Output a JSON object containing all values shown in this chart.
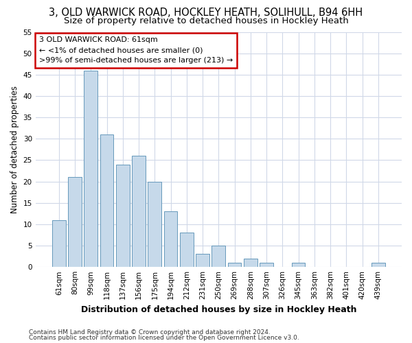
{
  "title1": "3, OLD WARWICK ROAD, HOCKLEY HEATH, SOLIHULL, B94 6HH",
  "title2": "Size of property relative to detached houses in Hockley Heath",
  "xlabel": "Distribution of detached houses by size in Hockley Heath",
  "ylabel": "Number of detached properties",
  "categories": [
    "61sqm",
    "80sqm",
    "99sqm",
    "118sqm",
    "137sqm",
    "156sqm",
    "175sqm",
    "194sqm",
    "212sqm",
    "231sqm",
    "250sqm",
    "269sqm",
    "288sqm",
    "307sqm",
    "326sqm",
    "345sqm",
    "363sqm",
    "382sqm",
    "401sqm",
    "420sqm",
    "439sqm"
  ],
  "values": [
    11,
    21,
    46,
    31,
    24,
    26,
    20,
    13,
    8,
    3,
    5,
    1,
    2,
    1,
    0,
    1,
    0,
    0,
    0,
    0,
    1
  ],
  "bar_color": "#c6d9ea",
  "bar_edge_color": "#6699bb",
  "annotation_text": "3 OLD WARWICK ROAD: 61sqm\n← <1% of detached houses are smaller (0)\n>99% of semi-detached houses are larger (213) →",
  "annotation_box_color": "#ffffff",
  "annotation_box_edge": "#cc0000",
  "footer1": "Contains HM Land Registry data © Crown copyright and database right 2024.",
  "footer2": "Contains public sector information licensed under the Open Government Licence v3.0.",
  "ylim": [
    0,
    55
  ],
  "yticks": [
    0,
    5,
    10,
    15,
    20,
    25,
    30,
    35,
    40,
    45,
    50,
    55
  ],
  "bg_color": "#ffffff",
  "plot_bg_color": "#ffffff",
  "grid_color": "#d0d8e8",
  "title1_fontsize": 10.5,
  "title2_fontsize": 9.5,
  "xlabel_fontsize": 9,
  "ylabel_fontsize": 8.5,
  "tick_fontsize": 7.5,
  "annotation_fontsize": 8,
  "footer_fontsize": 6.5
}
